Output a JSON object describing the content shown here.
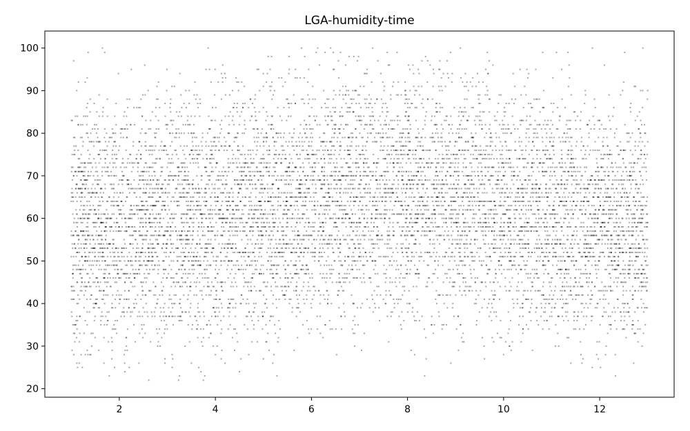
{
  "chart_data": {
    "type": "scatter",
    "title": "LGA-humidity-time",
    "xlabel": "",
    "ylabel": "",
    "xlim": [
      0.45,
      13.55
    ],
    "ylim": [
      18,
      104
    ],
    "x_ticks": [
      2,
      4,
      6,
      8,
      10,
      12
    ],
    "y_ticks": [
      20,
      30,
      40,
      50,
      60,
      70,
      80,
      90,
      100
    ],
    "grid": false,
    "legend": "none",
    "marker_color": "#000000",
    "marker_opacity": 0.35,
    "series": [
      {
        "x_range": [
          1.0,
          13.0
        ],
        "y_range": [
          22,
          100
        ],
        "description_note": "",
        "points": [
          [
            1.05,
            97
          ],
          [
            1.1,
            36
          ],
          [
            1.15,
            92
          ],
          [
            1.2,
            48
          ],
          [
            1.25,
            70
          ],
          [
            1.3,
            55
          ],
          [
            1.35,
            99
          ],
          [
            1.4,
            41
          ],
          [
            1.45,
            33
          ],
          [
            1.5,
            62
          ],
          [
            1.55,
            79
          ],
          [
            1.6,
            52
          ],
          [
            1.65,
            100
          ],
          [
            1.7,
            45
          ],
          [
            1.75,
            88
          ],
          [
            1.8,
            58
          ],
          [
            1.85,
            31
          ],
          [
            1.9,
            66
          ],
          [
            1.95,
            74
          ],
          [
            2.0,
            50
          ],
          [
            2.1,
            28
          ],
          [
            2.15,
            84
          ],
          [
            2.2,
            43
          ],
          [
            2.25,
            95
          ],
          [
            2.3,
            57
          ],
          [
            2.4,
            68
          ],
          [
            2.5,
            39
          ],
          [
            2.6,
            90
          ],
          [
            2.7,
            53
          ],
          [
            2.8,
            30
          ],
          [
            2.9,
            72
          ],
          [
            2.95,
            26
          ],
          [
            3.0,
            61
          ],
          [
            3.1,
            25
          ],
          [
            3.2,
            47
          ],
          [
            3.3,
            86
          ],
          [
            3.4,
            56
          ],
          [
            3.5,
            26
          ],
          [
            3.6,
            77
          ],
          [
            3.7,
            24
          ],
          [
            3.75,
            22
          ],
          [
            3.8,
            64
          ],
          [
            3.85,
            100
          ],
          [
            3.9,
            49
          ],
          [
            4.0,
            28
          ],
          [
            4.1,
            82
          ],
          [
            4.2,
            26
          ],
          [
            4.3,
            59
          ],
          [
            4.4,
            29
          ],
          [
            4.5,
            24
          ],
          [
            4.6,
            91
          ],
          [
            4.7,
            51
          ],
          [
            4.8,
            34
          ],
          [
            4.9,
            69
          ],
          [
            5.0,
            27
          ],
          [
            5.1,
            98
          ],
          [
            5.2,
            46
          ],
          [
            5.3,
            31
          ],
          [
            5.4,
            75
          ],
          [
            5.5,
            60
          ],
          [
            5.6,
            38
          ],
          [
            5.7,
            93
          ],
          [
            5.8,
            55
          ],
          [
            5.9,
            42
          ],
          [
            6.0,
            80
          ],
          [
            6.1,
            99
          ],
          [
            6.2,
            63
          ],
          [
            6.3,
            45
          ],
          [
            6.4,
            100
          ],
          [
            6.5,
            71
          ],
          [
            6.6,
            54
          ],
          [
            6.7,
            37
          ],
          [
            6.8,
            85
          ],
          [
            6.9,
            50
          ],
          [
            7.0,
            67
          ],
          [
            7.1,
            33
          ],
          [
            7.2,
            89
          ],
          [
            7.3,
            58
          ],
          [
            7.4,
            44
          ],
          [
            7.5,
            76
          ],
          [
            7.6,
            96
          ],
          [
            7.7,
            52
          ],
          [
            7.8,
            40
          ],
          [
            7.9,
            70
          ],
          [
            8.0,
            62
          ],
          [
            8.1,
            87
          ],
          [
            8.2,
            48
          ],
          [
            8.3,
            97
          ],
          [
            8.4,
            57
          ],
          [
            8.5,
            73
          ],
          [
            8.6,
            43
          ],
          [
            8.7,
            91
          ],
          [
            8.8,
            60
          ],
          [
            8.9,
            51
          ],
          [
            9.0,
            78
          ],
          [
            9.1,
            100
          ],
          [
            9.2,
            46
          ],
          [
            9.3,
            66
          ],
          [
            9.4,
            55
          ],
          [
            9.5,
            83
          ],
          [
            9.6,
            41
          ],
          [
            9.7,
            97
          ],
          [
            9.8,
            59
          ],
          [
            9.9,
            50
          ],
          [
            10.0,
            72
          ],
          [
            10.1,
            38
          ],
          [
            10.2,
            94
          ],
          [
            10.3,
            56
          ],
          [
            10.4,
            33
          ],
          [
            10.5,
            68
          ],
          [
            10.6,
            29
          ],
          [
            10.7,
            88
          ],
          [
            10.8,
            53
          ],
          [
            10.9,
            36
          ],
          [
            11.0,
            79
          ],
          [
            11.1,
            99
          ],
          [
            11.2,
            47
          ],
          [
            11.3,
            64
          ],
          [
            11.4,
            26
          ],
          [
            11.5,
            74
          ],
          [
            11.6,
            31
          ],
          [
            11.7,
            90
          ],
          [
            11.8,
            57
          ],
          [
            11.85,
            100
          ],
          [
            11.9,
            44
          ],
          [
            12.0,
            81
          ],
          [
            12.1,
            96
          ],
          [
            12.2,
            52
          ],
          [
            12.3,
            39
          ],
          [
            12.4,
            69
          ],
          [
            12.5,
            92
          ],
          [
            12.6,
            58
          ],
          [
            12.7,
            35
          ],
          [
            12.8,
            77
          ],
          [
            12.9,
            100
          ],
          [
            13.0,
            49
          ],
          [
            12.95,
            35
          ],
          [
            1.0,
            64
          ],
          [
            13.0,
            90
          ],
          [
            6.9,
            30
          ]
        ]
      }
    ]
  }
}
